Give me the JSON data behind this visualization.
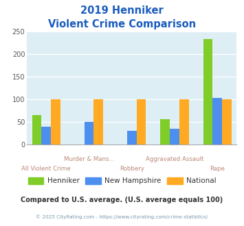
{
  "title_line1": "2019 Henniker",
  "title_line2": "Violent Crime Comparison",
  "categories": [
    "All Violent Crime",
    "Murder & Mans...",
    "Robbery",
    "Aggravated Assault",
    "Rape"
  ],
  "series": {
    "Henniker": [
      65,
      0,
      0,
      57,
      234
    ],
    "New Hampshire": [
      40,
      50,
      30,
      35,
      103
    ],
    "National": [
      100,
      100,
      100,
      100,
      100
    ]
  },
  "colors": {
    "Henniker": "#80cc28",
    "New Hampshire": "#4d8fef",
    "National": "#ffaa22"
  },
  "ylim": [
    0,
    250
  ],
  "yticks": [
    0,
    50,
    100,
    150,
    200,
    250
  ],
  "title_color": "#1a5cbf",
  "category_color_upper": "#bb8877",
  "category_color_lower": "#bb8877",
  "plot_bg": "#ddeef5",
  "legend_text_color": "#333333",
  "footer_text": "Compared to U.S. average. (U.S. average equals 100)",
  "copyright_text": "© 2025 CityRating.com - https://www.cityrating.com/crime-statistics/",
  "footer_color": "#333333",
  "copyright_color": "#7799aa"
}
